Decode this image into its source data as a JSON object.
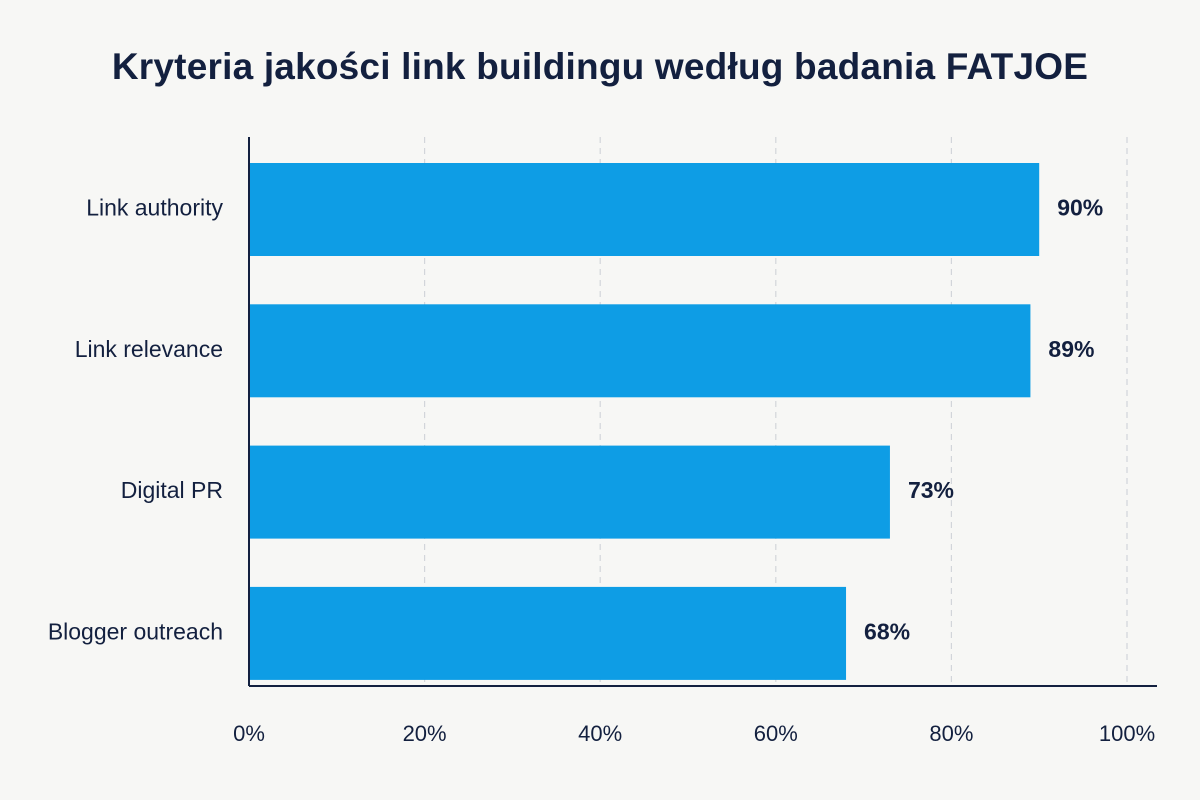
{
  "chart_data": {
    "type": "bar",
    "orientation": "horizontal",
    "title": "Kryteria jakości link buildingu według badania FATJOE",
    "categories": [
      "Link authority",
      "Link relevance",
      "Digital PR",
      "Blogger outreach"
    ],
    "values": [
      90,
      89,
      73,
      68
    ],
    "value_labels": [
      "90%",
      "89%",
      "73%",
      "68%"
    ],
    "xlim": [
      0,
      100
    ],
    "xticks": [
      0,
      20,
      40,
      60,
      80,
      100
    ],
    "xtick_labels": [
      "0%",
      "20%",
      "40%",
      "60%",
      "80%",
      "100%"
    ],
    "grid": "vertical dashed",
    "bar_color": "#0e9de5",
    "text_color": "#13203f"
  }
}
